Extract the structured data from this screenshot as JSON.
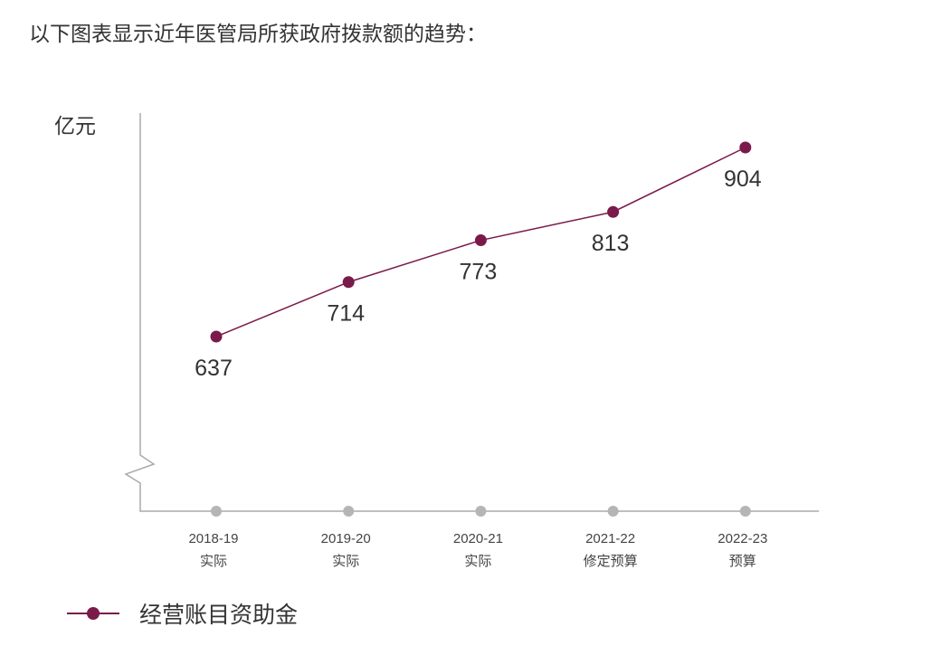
{
  "intro_text": "以下图表显示近年医管局所获政府拨款额的趋势：",
  "colors": {
    "series": "#7a1a4a",
    "axis": "#aaaaaa",
    "tick_dot": "#b5b5b5",
    "text": "#333333"
  },
  "legend": {
    "icon": "line-with-dot-marker-icon"
  },
  "chart_data": {
    "type": "line",
    "ylabel": "亿元",
    "xlabel": "",
    "y_axis_broken": true,
    "y_ticks_shown": false,
    "categories": [
      {
        "year": "2018-19",
        "status": "实际"
      },
      {
        "year": "2019-20",
        "status": "实际"
      },
      {
        "year": "2020-21",
        "status": "实际"
      },
      {
        "year": "2021-22",
        "status": "修定预算"
      },
      {
        "year": "2022-23",
        "status": "预算"
      }
    ],
    "series": [
      {
        "name": "经营账目资助金",
        "values": [
          637,
          714,
          773,
          813,
          904
        ],
        "data_labels": [
          "637",
          "714",
          "773",
          "813",
          "904"
        ]
      }
    ],
    "legend_position": "bottom-left"
  }
}
